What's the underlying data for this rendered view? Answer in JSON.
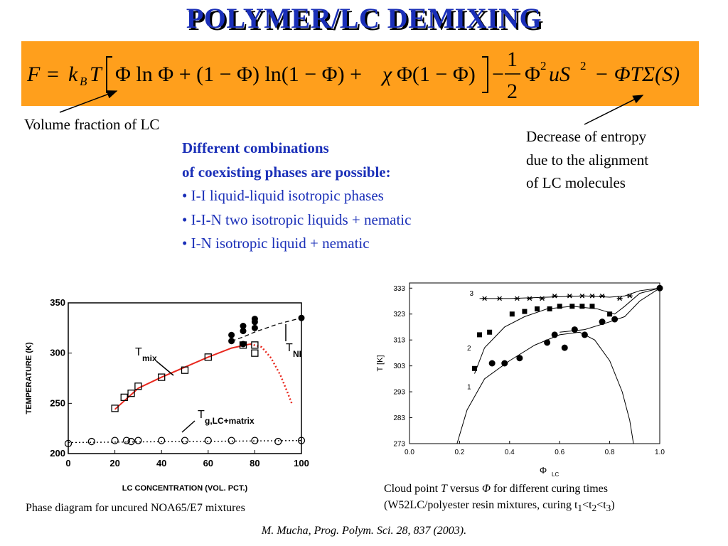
{
  "title": "POLYMER/LC DEMIXING",
  "formula": {
    "F": "F",
    "eq": "=",
    "kb": "k",
    "kb_sub": "B",
    "T": "T",
    "term1": "Φ ln Φ + (1 − Φ) ln(1 − Φ) + ",
    "chi": "χ",
    "term2": "Φ(1 − Φ)",
    "minus": "−",
    "half_num": "1",
    "half_den": "2",
    "phi": "Φ",
    "sup2": "2",
    "uS": "uS",
    "tail": "− ΦTΣ(S)"
  },
  "annotations": {
    "left": "Volume fraction of LC",
    "right_lines": [
      "Decrease of entropy",
      "due to the alignment",
      "of LC molecules"
    ]
  },
  "phases": {
    "header_lines": [
      "Different combinations",
      "of coexisting phases are possible:"
    ],
    "items": [
      "• I-I liquid-liquid isotropic phases",
      "• I-I-N two isotropic liquids + nematic",
      "• I-N isotropic liquid + nematic"
    ]
  },
  "chart_data": [
    {
      "type": "scatter",
      "xlabel": "LC CONCENTRATION (VOL. PCT.)",
      "ylabel": "TEMPERATURE (K)",
      "xlim": [
        0,
        100
      ],
      "ylim": [
        200,
        350
      ],
      "xticks": [
        "0",
        "20",
        "40",
        "60",
        "80",
        "100"
      ],
      "yticks": [
        "200",
        "250",
        "300",
        "350"
      ],
      "series": [
        {
          "name": "T_mix",
          "marker": "open-square",
          "x": [
            20,
            24,
            27,
            30,
            40,
            50,
            60,
            75,
            80,
            80
          ],
          "y": [
            245,
            256,
            260,
            267,
            276,
            283,
            296,
            308,
            300,
            308
          ]
        },
        {
          "name": "T_NI",
          "marker": "filled-circle",
          "x": [
            70,
            70,
            75,
            75,
            75,
            80,
            80,
            80,
            100
          ],
          "y": [
            312,
            318,
            309,
            322,
            327,
            325,
            331,
            334,
            335
          ]
        },
        {
          "name": "T_g,LC+matrix",
          "marker": "open-circle",
          "x": [
            0,
            10,
            20,
            25,
            27,
            30,
            40,
            50,
            60,
            70,
            80,
            90,
            100
          ],
          "y": [
            210,
            212,
            213,
            213,
            212,
            213,
            213,
            213,
            213,
            213,
            213,
            212,
            213
          ]
        }
      ],
      "annotations": [
        "T",
        "mix",
        "T",
        "NI",
        "T",
        "g,LC+matrix"
      ]
    },
    {
      "type": "scatter",
      "xlabel": "Φ",
      "xlabel_sub": "LC",
      "ylabel": "T [K]",
      "xlim": [
        0,
        1
      ],
      "ylim": [
        273,
        335
      ],
      "xticks": [
        "0.0",
        "0.2",
        "0.4",
        "0.6",
        "0.8",
        "1.0"
      ],
      "yticks": [
        "273",
        "283",
        "293",
        "303",
        "313",
        "323",
        "333"
      ],
      "series": [
        {
          "name": "1",
          "marker": "filled-circle",
          "x": [
            0.33,
            0.38,
            0.44,
            0.55,
            0.58,
            0.62,
            0.66,
            0.7,
            0.77,
            0.82
          ],
          "y": [
            304,
            304,
            306,
            312,
            315,
            310,
            317,
            315,
            320,
            321
          ]
        },
        {
          "name": "2",
          "marker": "filled-square",
          "x": [
            0.26,
            0.28,
            0.32,
            0.41,
            0.46,
            0.51,
            0.56,
            0.6,
            0.65,
            0.69,
            0.73,
            0.8
          ],
          "y": [
            302,
            315,
            316,
            323,
            324,
            325,
            325,
            326,
            326,
            326,
            326,
            323
          ]
        },
        {
          "name": "3",
          "marker": "star",
          "x": [
            0.3,
            0.36,
            0.43,
            0.48,
            0.53,
            0.58,
            0.64,
            0.69,
            0.73,
            0.77,
            0.84,
            0.88
          ],
          "y": [
            329,
            329,
            329,
            329,
            329,
            330,
            330,
            330,
            330,
            330,
            329,
            330
          ]
        }
      ],
      "curve_labels": [
        "1",
        "2",
        "3"
      ]
    }
  ],
  "captions": {
    "left": "Phase diagram for uncured NOA65/E7 mixtures",
    "right_line1_a": "Cloud point ",
    "right_line1_T": "T",
    "right_line1_b": " versus ",
    "right_line1_phi": "Φ",
    "right_line1_c": " for different curing times",
    "right_line2_a": "(W52LC/polyester resin mixtures, curing t",
    "right_line2_s1": "1",
    "right_line2_b": "<t",
    "right_line2_s2": "2",
    "right_line2_c": "<t",
    "right_line2_s3": "3",
    "right_line2_d": ")"
  },
  "citation": "M. Mucha, Prog. Polym. Sci. 28, 837 (2003)."
}
